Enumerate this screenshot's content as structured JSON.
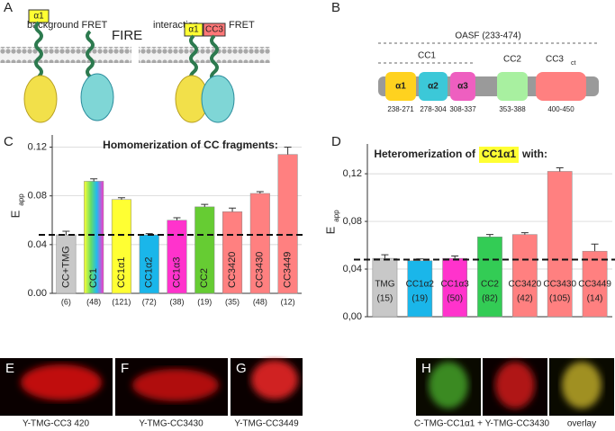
{
  "panel_labels": [
    "A",
    "B",
    "C",
    "D",
    "E",
    "F",
    "G",
    "H"
  ],
  "diagram_a": {
    "left_label": "background FRET",
    "right_label": "interaction",
    "right_label_2": "FRET",
    "center": "FIRE",
    "tags": [
      "α1",
      "α1",
      "CC3"
    ]
  },
  "diagram_b": {
    "oasf": "OASF (233-474)",
    "cc1": "CC1",
    "domains": [
      {
        "name": "α1",
        "range": "238-271"
      },
      {
        "name": "α2",
        "range": "278-304"
      },
      {
        "name": "α3",
        "range": "308-337"
      },
      {
        "name": "CC2",
        "range": "353-388"
      },
      {
        "name": "CC3",
        "subscript": "ct",
        "range": "400-450"
      }
    ]
  },
  "images": [
    {
      "caption": "Y-TMG-CC3 420"
    },
    {
      "caption": "Y-TMG-CC3430"
    },
    {
      "caption": "Y-TMG-CC3449"
    },
    {
      "caption": "C-TMG-CC1α1 + Y-TMG-CC3430",
      "caption_2": "overlay"
    }
  ],
  "chart_data": [
    {
      "type": "bar",
      "title": "Homomerization of CC fragments:",
      "ylabel": "E",
      "ylabel_sub": "app",
      "categories": [
        "CC+TMG",
        "CC1",
        "CC1α1",
        "CC1α2",
        "CC1α3",
        "CC2",
        "CC3420",
        "CC3430",
        "CC3449"
      ],
      "values": [
        0.048,
        0.092,
        0.077,
        0.048,
        0.06,
        0.071,
        0.067,
        0.082,
        0.114
      ],
      "errors": [
        0.003,
        0.002,
        0.0015,
        0.001,
        0.002,
        0.002,
        0.003,
        0.0015,
        0.006
      ],
      "n_labels": [
        "(6)",
        "(48)",
        "(121)",
        "(72)",
        "(38)",
        "(19)",
        "(35)",
        "(48)",
        "(12)"
      ],
      "colors": [
        "#c8c8c8",
        "rainbow",
        "#ffff33",
        "#1ab6ea",
        "#ff33cc",
        "#66cc33",
        "#ff8080",
        "#ff8080",
        "#ff8080"
      ],
      "ylim": [
        0,
        0.13
      ],
      "yticks": [
        {
          "value": 0,
          "label": "0.00"
        },
        {
          "value": 0.04,
          "label": "0.04"
        },
        {
          "value": 0.08,
          "label": "0.08"
        },
        {
          "value": 0.12,
          "label": "0.12"
        }
      ],
      "reference_line": 0.048,
      "grid": true
    },
    {
      "type": "bar",
      "title": "Heteromerization of",
      "title_highlight": "CC1α1",
      "title_end": "with:",
      "ylabel": "E",
      "ylabel_sub": "app",
      "categories": [
        "TMG",
        "CC1α2",
        "CC1α3",
        "CC2",
        "CC3420",
        "CC3430",
        "CC3449"
      ],
      "values": [
        0.049,
        0.047,
        0.049,
        0.067,
        0.069,
        0.122,
        0.055
      ],
      "errors": [
        0.003,
        0.0015,
        0.002,
        0.002,
        0.0015,
        0.003,
        0.006
      ],
      "n_labels": [
        "(15)",
        "(19)",
        "(50)",
        "(82)",
        "(42)",
        "(105)",
        "(14)"
      ],
      "colors": [
        "#c8c8c8",
        "#1ab6ea",
        "#ff33cc",
        "#33cc55",
        "#ff8080",
        "#ff8080",
        "#ff8080"
      ],
      "ylim": [
        0,
        0.145
      ],
      "yticks": [
        {
          "value": 0,
          "label": "0,00"
        },
        {
          "value": 0.04,
          "label": "0,04"
        },
        {
          "value": 0.08,
          "label": "0,08"
        },
        {
          "value": 0.12,
          "label": "0,12"
        }
      ],
      "reference_line": 0.048,
      "grid": true
    }
  ]
}
